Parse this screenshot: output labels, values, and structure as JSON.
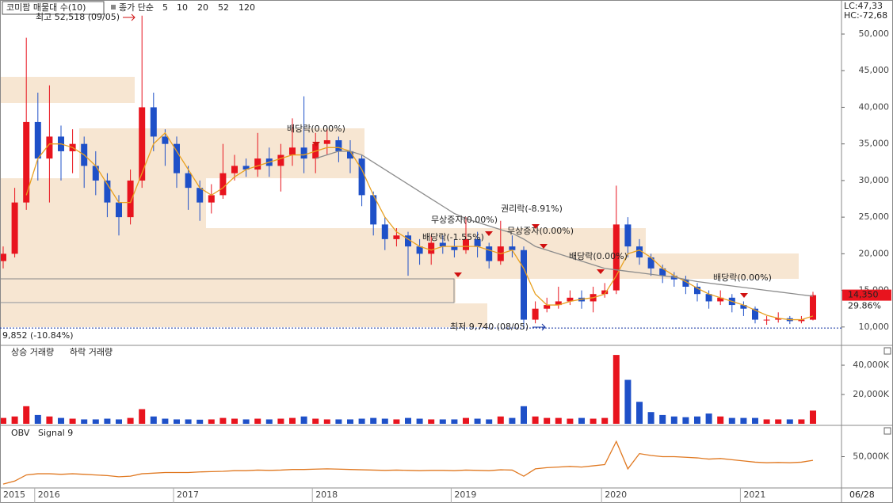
{
  "chart_data": {
    "type": "candlestick",
    "title": "코미팜 매물대 수(10)",
    "ma_label": "종가 단순",
    "ma_legend": [
      {
        "name": "5",
        "color": "#c0208f"
      },
      {
        "name": "10",
        "color": "#2040c0"
      },
      {
        "name": "20",
        "color": "#e0a000"
      },
      {
        "name": "52",
        "color": "#20a040"
      },
      {
        "name": "120",
        "color": "#909090"
      }
    ],
    "lc": "LC:47,33",
    "hc": "HC:-72,68",
    "categories": [
      "2015",
      null,
      null,
      "2016",
      null,
      null,
      null,
      null,
      null,
      null,
      null,
      null,
      null,
      null,
      null,
      "2017",
      null,
      null,
      null,
      null,
      null,
      null,
      null,
      null,
      null,
      null,
      null,
      "2018",
      null,
      null,
      null,
      null,
      null,
      null,
      null,
      null,
      null,
      null,
      null,
      "2019",
      null,
      null,
      null,
      null,
      null,
      null,
      null,
      null,
      null,
      null,
      null,
      null,
      "2020",
      null,
      null,
      null,
      null,
      null,
      null,
      null,
      null,
      null,
      null,
      null,
      "2021",
      null,
      null,
      null,
      null,
      null,
      null
    ],
    "end_label": "06/28",
    "ohlc": [
      [
        19000,
        21000,
        18000,
        20000
      ],
      [
        20000,
        29000,
        19500,
        27000
      ],
      [
        27000,
        49500,
        26000,
        38000
      ],
      [
        38000,
        42000,
        30000,
        33000
      ],
      [
        33000,
        43000,
        27000,
        36000
      ],
      [
        36000,
        37500,
        30000,
        34000
      ],
      [
        34000,
        37000,
        31000,
        35000
      ],
      [
        35000,
        36000,
        29000,
        32000
      ],
      [
        32000,
        34000,
        28000,
        30000
      ],
      [
        30000,
        31000,
        25000,
        27000
      ],
      [
        27000,
        28000,
        22500,
        25000
      ],
      [
        25000,
        31500,
        24000,
        30000
      ],
      [
        30000,
        52518,
        29000,
        40000
      ],
      [
        40000,
        42000,
        34000,
        36000
      ],
      [
        36000,
        37000,
        32000,
        35000
      ],
      [
        35000,
        36000,
        29000,
        31000
      ],
      [
        31000,
        32000,
        26000,
        29000
      ],
      [
        29000,
        30000,
        24500,
        27000
      ],
      [
        27000,
        29500,
        25500,
        28000
      ],
      [
        28000,
        35000,
        27500,
        31000
      ],
      [
        31000,
        33500,
        30000,
        32000
      ],
      [
        32000,
        33000,
        30500,
        31500
      ],
      [
        31500,
        36500,
        30500,
        33000
      ],
      [
        33000,
        34500,
        30500,
        32000
      ],
      [
        32000,
        35000,
        28500,
        33500
      ],
      [
        33500,
        38500,
        32000,
        34500
      ],
      [
        34500,
        41500,
        31000,
        33000
      ],
      [
        33000,
        36500,
        31000,
        35000
      ],
      [
        35000,
        37000,
        33500,
        35500
      ],
      [
        35500,
        36000,
        32500,
        34000
      ],
      [
        34000,
        35500,
        31000,
        33000
      ],
      [
        33000,
        33500,
        26500,
        28000
      ],
      [
        28000,
        28500,
        22500,
        24000
      ],
      [
        24000,
        25000,
        20500,
        22000
      ],
      [
        22000,
        23500,
        21000,
        22500
      ],
      [
        22500,
        23000,
        17000,
        21000
      ],
      [
        21000,
        22000,
        18500,
        20000
      ],
      [
        20000,
        22500,
        18500,
        21500
      ],
      [
        21500,
        22500,
        20000,
        21000
      ],
      [
        21000,
        22000,
        19500,
        20500
      ],
      [
        20500,
        25000,
        20000,
        22000
      ],
      [
        22000,
        23000,
        19500,
        21000
      ],
      [
        21000,
        21500,
        18000,
        19000
      ],
      [
        19000,
        24500,
        18500,
        21000
      ],
      [
        21000,
        22500,
        19500,
        20500
      ],
      [
        20500,
        21000,
        9740,
        11000
      ],
      [
        11000,
        13500,
        10500,
        12500
      ],
      [
        12500,
        14000,
        12000,
        13000
      ],
      [
        13000,
        15500,
        12500,
        13500
      ],
      [
        13500,
        15000,
        13000,
        14000
      ],
      [
        14000,
        15000,
        12500,
        13500
      ],
      [
        13500,
        15500,
        12000,
        14500
      ],
      [
        14500,
        16000,
        14000,
        15000
      ],
      [
        15000,
        29300,
        14500,
        24000
      ],
      [
        24000,
        25000,
        19500,
        21000
      ],
      [
        21000,
        22000,
        18500,
        19500
      ],
      [
        19500,
        20000,
        17000,
        18000
      ],
      [
        18000,
        18500,
        16000,
        17000
      ],
      [
        17000,
        17500,
        15500,
        16500
      ],
      [
        16500,
        17000,
        14500,
        15500
      ],
      [
        15500,
        16000,
        13500,
        14500
      ],
      [
        14500,
        15000,
        12500,
        13500
      ],
      [
        13500,
        15000,
        13000,
        14000
      ],
      [
        14000,
        14500,
        12000,
        13000
      ],
      [
        13000,
        13500,
        11500,
        12500
      ],
      [
        12500,
        12800,
        10500,
        11000
      ],
      [
        11000,
        11500,
        10300,
        11000
      ],
      [
        11000,
        12000,
        10600,
        11200
      ],
      [
        11200,
        11500,
        10400,
        10800
      ],
      [
        10800,
        11500,
        10500,
        11000
      ],
      [
        11000,
        14800,
        10900,
        14350
      ]
    ],
    "up_color": "#e8141e",
    "down_color": "#1e50c8",
    "ma": [
      {
        "color": "#e8a020",
        "values": [
          null,
          null,
          28000,
          33000,
          35000,
          35000,
          34500,
          33500,
          32000,
          29500,
          27000,
          27000,
          31000,
          35000,
          36500,
          34000,
          31500,
          29000,
          28000,
          29000,
          30500,
          31500,
          32000,
          32500,
          33000,
          33500,
          33500,
          34000,
          34500,
          34500,
          34000,
          31500,
          28000,
          25000,
          23000,
          22000,
          21000,
          20500,
          21000,
          21000,
          21000,
          21000,
          20500,
          20000,
          20500,
          18000,
          14500,
          13000,
          13000,
          13500,
          13800,
          14000,
          14500,
          17000,
          20000,
          20500,
          19500,
          18000,
          17000,
          16200,
          15300,
          14500,
          14000,
          13500,
          13000,
          12300,
          11600,
          11200,
          11000,
          11000,
          11500
        ]
      },
      {
        "color": "#8c8c8c",
        "values": [
          null,
          null,
          null,
          null,
          null,
          null,
          null,
          null,
          null,
          null,
          null,
          null,
          null,
          null,
          null,
          null,
          null,
          null,
          null,
          null,
          null,
          null,
          null,
          null,
          null,
          null,
          null,
          33000,
          33500,
          34000,
          34000,
          33500,
          32500,
          31500,
          30500,
          29500,
          28500,
          27500,
          26500,
          25500,
          24800,
          24300,
          23800,
          23300,
          22800,
          22000,
          21000,
          20500,
          20000,
          19500,
          19000,
          18500,
          18000,
          17800,
          17600,
          17400,
          17200,
          17000,
          16800,
          16500,
          16200,
          16000,
          15800,
          15600,
          15400,
          15200,
          15000,
          14800,
          14600,
          14400,
          14200
        ]
      }
    ],
    "ylim": [
      7600,
      54650
    ],
    "yticks": [
      {
        "value": 10000,
        "label": "10,000"
      },
      {
        "value": 15000,
        "label": "15,000"
      },
      {
        "value": 20000,
        "label": "20,000"
      },
      {
        "value": 25000,
        "label": "25,000"
      },
      {
        "value": 30000,
        "label": "30,000"
      },
      {
        "value": 35000,
        "label": "35,000"
      },
      {
        "value": 40000,
        "label": "40,000"
      },
      {
        "value": 45000,
        "label": "45,000"
      },
      {
        "value": 50000,
        "label": "50,000"
      }
    ],
    "last": {
      "value": 14350,
      "label": "14,350"
    },
    "change": "29.86%",
    "low_line": {
      "value": 9852,
      "label": "9,852 (-10.84%)"
    },
    "annotations": [
      "최고 52,518 (09/05)",
      "배당락(0.00%)",
      "무상증자(0.00%)",
      "배당락(-1.55%)",
      "권리락(-8.91%)",
      "무상증자(0.00%)",
      "배당락(0.00%)",
      "배당락(0.00%)",
      "최저 9,740 (08/05)"
    ],
    "volume": {
      "up_name": "상승 거래량",
      "down_name": "하락 거래량",
      "values": [
        4000,
        5000,
        12000,
        6000,
        5000,
        4000,
        3500,
        3000,
        3000,
        3500,
        3000,
        4000,
        10000,
        5000,
        3500,
        3000,
        3000,
        2800,
        3000,
        4000,
        3500,
        3000,
        3500,
        3000,
        3500,
        4000,
        5000,
        3500,
        3000,
        3000,
        3000,
        3500,
        4000,
        3500,
        3000,
        4000,
        3500,
        3000,
        3000,
        3000,
        4000,
        3500,
        3000,
        5000,
        4000,
        12000,
        5000,
        4000,
        4000,
        3500,
        4000,
        3500,
        4000,
        47000,
        30000,
        15000,
        8000,
        6000,
        5000,
        4500,
        5000,
        7000,
        5000,
        4000,
        4000,
        4000,
        3000,
        3000,
        3000,
        3000,
        9000
      ],
      "ylim": [
        0,
        53000
      ],
      "yticks": [
        {
          "value": 20000,
          "label": "20,000K"
        },
        {
          "value": 40000,
          "label": "40,000K"
        }
      ]
    },
    "obv": {
      "name": "OBV",
      "signal": "Signal 9",
      "color": "#e07820",
      "signal_color": "#602080",
      "values": [
        5000,
        10000,
        20000,
        22000,
        22000,
        21000,
        22000,
        21000,
        20000,
        19000,
        17000,
        18000,
        22000,
        23000,
        24000,
        24000,
        24000,
        25000,
        25500,
        26000,
        27000,
        27000,
        28000,
        27500,
        28000,
        29000,
        29000,
        29500,
        30000,
        29500,
        29000,
        28500,
        28000,
        27500,
        28000,
        27500,
        27000,
        27500,
        27500,
        27000,
        28000,
        27500,
        27000,
        28500,
        28000,
        18000,
        30000,
        32000,
        33000,
        34000,
        33000,
        35000,
        37000,
        75000,
        30000,
        55000,
        52000,
        50000,
        50000,
        49000,
        48000,
        46000,
        47000,
        45000,
        43000,
        41000,
        40000,
        40500,
        40000,
        41000,
        44000
      ],
      "ylim": [
        0,
        100000
      ],
      "yticks": [
        {
          "value": 50000,
          "label": "50,000K"
        }
      ]
    }
  }
}
